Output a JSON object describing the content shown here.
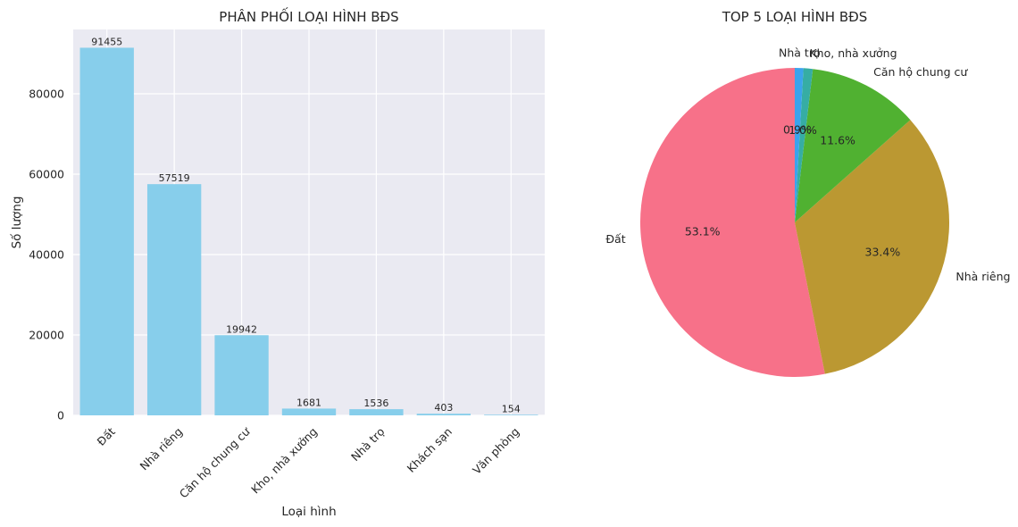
{
  "chart_data": [
    {
      "type": "bar",
      "title": "PHÂN PHỐI LOẠI HÌNH BĐS",
      "xlabel": "Loại hình",
      "ylabel": "Số lượng",
      "categories": [
        "Đất",
        "Nhà riêng",
        "Căn hộ chung cư",
        "Kho, nhà xưởng",
        "Nhà trọ",
        "Khách sạn",
        "Văn phòng"
      ],
      "values": [
        91455,
        57519,
        19942,
        1681,
        1536,
        403,
        154
      ],
      "data_labels": [
        "91455",
        "57519",
        "19942",
        "1681",
        "1536",
        "403",
        "154"
      ],
      "ylim": [
        0,
        96000
      ],
      "yticks": [
        0,
        20000,
        40000,
        60000,
        80000
      ],
      "ytick_labels": [
        "0",
        "20000",
        "40000",
        "60000",
        "80000"
      ],
      "grid": true,
      "bar_color": "#87ceeb",
      "plot_background": "#eaeaf2",
      "grid_color": "#ffffff"
    },
    {
      "type": "pie",
      "title": "TOP 5 LOẠI HÌNH BĐS",
      "labels": [
        "Đất",
        "Nhà riêng",
        "Căn hộ chung cư",
        "Kho, nhà xưởng",
        "Nhà trọ"
      ],
      "values": [
        91455,
        57519,
        19942,
        1681,
        1536
      ],
      "pct_labels": [
        "53.1%",
        "33.4%",
        "11.6%",
        "1.0%",
        "0.9%"
      ],
      "colors": [
        "#f77189",
        "#bb9832",
        "#50b131",
        "#36ada4",
        "#3ba3ec"
      ],
      "start_angle_deg": 90,
      "direction": "counterclockwise"
    }
  ]
}
